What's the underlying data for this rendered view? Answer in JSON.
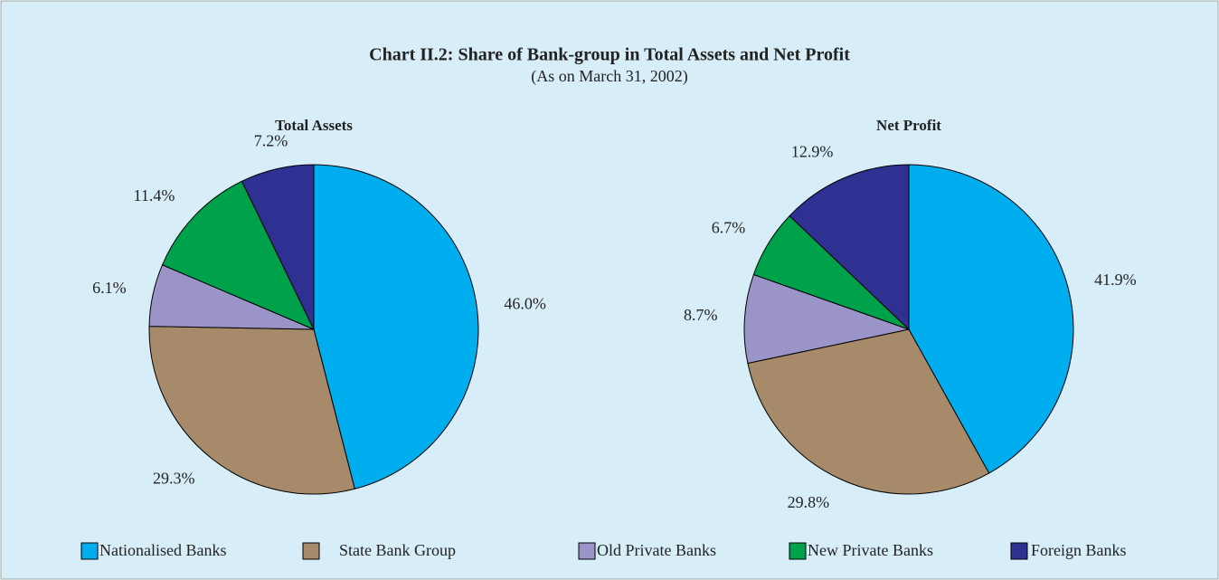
{
  "title": "Chart II.2: Share of Bank-group in Total Assets and Net Profit",
  "subtitle": "(As on March 31, 2002)",
  "chart_data": [
    {
      "type": "pie",
      "title": "Total Assets",
      "categories": [
        "Nationalised Banks",
        "State Bank Group",
        "Old Private Banks",
        "New Private Banks",
        "Foreign Banks"
      ],
      "values": [
        46.0,
        29.3,
        6.1,
        11.4,
        7.2
      ],
      "value_labels": [
        "46.0%",
        "29.3%",
        "6.1%",
        "11.4%",
        "7.2%"
      ],
      "colors": [
        "#00aeef",
        "#a68a6a",
        "#9b94c9",
        "#00a14b",
        "#2e3192"
      ]
    },
    {
      "type": "pie",
      "title": "Net Profit",
      "categories": [
        "Nationalised Banks",
        "State Bank Group",
        "Old Private Banks",
        "New Private Banks",
        "Foreign Banks"
      ],
      "values": [
        41.9,
        29.8,
        8.7,
        6.7,
        12.9
      ],
      "value_labels": [
        "41.9%",
        "29.8%",
        "8.7%",
        "6.7%",
        "12.9%"
      ],
      "colors": [
        "#00aeef",
        "#a68a6a",
        "#9b94c9",
        "#00a14b",
        "#2e3192"
      ]
    }
  ]
}
